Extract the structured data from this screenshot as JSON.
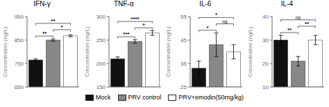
{
  "chart_data": [
    {
      "type": "bar",
      "title": "IFN-γ",
      "y_label": "Concentration (ng/L)",
      "categories": [
        "Mock",
        "PRV control",
        "PRV+emodin(50mg/kg)"
      ],
      "values": [
        765,
        850,
        868
      ],
      "errors": [
        5,
        5,
        4
      ],
      "colors": [
        "#111111",
        "#888888",
        "#ffffff"
      ],
      "ylim": [
        650,
        950
      ],
      "yticks": [
        650,
        750,
        850,
        950
      ],
      "tick_labels": "y",
      "legend": "bottom",
      "annotations": [
        {
          "pairs": [
            0,
            1
          ],
          "label": "**"
        },
        {
          "pairs": [
            0,
            2
          ],
          "label": "**"
        },
        {
          "pairs": [
            1,
            2
          ],
          "label": "*"
        }
      ]
    },
    {
      "type": "bar",
      "title": "TNF-α",
      "y_label": "Concentration (ng/L)",
      "categories": [
        "Mock",
        "PRV control",
        "PRV+emodin(50mg/kg)"
      ],
      "values": [
        210,
        247,
        265
      ],
      "errors": [
        4,
        4,
        5
      ],
      "colors": [
        "#111111",
        "#888888",
        "#ffffff"
      ],
      "ylim": [
        150,
        300
      ],
      "yticks": [
        150,
        200,
        250,
        300
      ],
      "tick_labels": "y",
      "legend": "bottom",
      "annotations": [
        {
          "pairs": [
            0,
            1
          ],
          "label": "***"
        },
        {
          "pairs": [
            0,
            2
          ],
          "label": "****"
        },
        {
          "pairs": [
            1,
            2
          ],
          "label": "*"
        }
      ]
    },
    {
      "type": "bar",
      "title": "IL-6",
      "y_label": "Concentration (ng/L)",
      "categories": [
        "Mock",
        "PRV control",
        "PRV+emodin(50mg/kg)"
      ],
      "values": [
        33,
        43,
        40
      ],
      "errors": [
        3,
        5,
        3
      ],
      "colors": [
        "#111111",
        "#888888",
        "#ffffff"
      ],
      "ylim": [
        25,
        55
      ],
      "yticks": [
        25,
        35,
        45,
        55
      ],
      "tick_labels": "y",
      "legend": "bottom",
      "annotations": [
        {
          "pairs": [
            0,
            1
          ],
          "label": "*"
        },
        {
          "pairs": [
            0,
            2
          ],
          "label": "*"
        },
        {
          "pairs": [
            1,
            2
          ],
          "label": "ns"
        }
      ]
    },
    {
      "type": "bar",
      "title": "IL-4",
      "y_label": "Concentration (ng/L)",
      "categories": [
        "Mock",
        "PRV control",
        "PRV+emodin(50mg/kg)"
      ],
      "values": [
        30,
        21,
        30
      ],
      "errors": [
        2,
        2,
        2
      ],
      "colors": [
        "#111111",
        "#888888",
        "#ffffff"
      ],
      "ylim": [
        10,
        40
      ],
      "yticks": [
        10,
        20,
        30,
        40
      ],
      "tick_labels": "y",
      "legend": "bottom",
      "annotations": [
        {
          "pairs": [
            0,
            1
          ],
          "label": "**"
        },
        {
          "pairs": [
            0,
            2
          ],
          "label": "ns"
        },
        {
          "pairs": [
            1,
            2
          ],
          "label": "**"
        }
      ]
    }
  ]
}
